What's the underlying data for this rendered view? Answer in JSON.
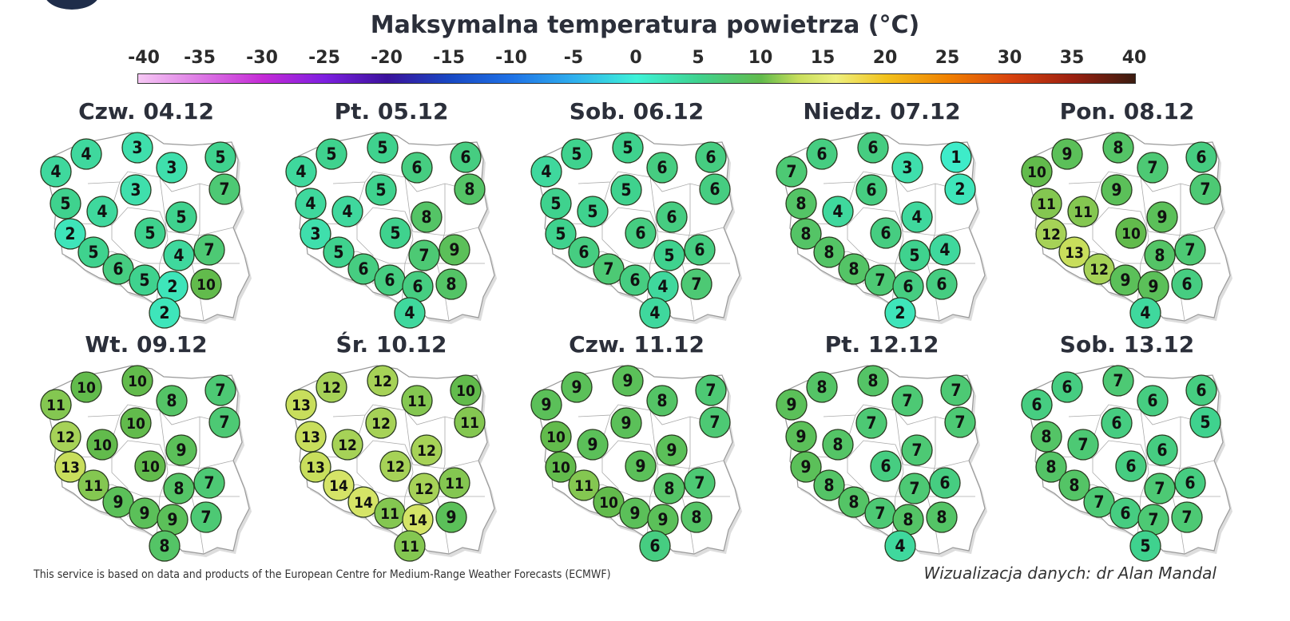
{
  "title": "Maksymalna temperatura powietrza (°C)",
  "colorbar": {
    "ticks": [
      "-40",
      "-35",
      "-30",
      "-25",
      "-20",
      "-15",
      "-10",
      "-5",
      "0",
      "5",
      "10",
      "15",
      "20",
      "25",
      "30",
      "35",
      "40"
    ],
    "range": [
      -40,
      40
    ],
    "colors": [
      {
        "v": -40,
        "c": "#f6c8f4"
      },
      {
        "v": -30,
        "c": "#c42ad6"
      },
      {
        "v": -25,
        "c": "#7d1fe0"
      },
      {
        "v": -20,
        "c": "#3a129c"
      },
      {
        "v": -15,
        "c": "#1848c4"
      },
      {
        "v": -10,
        "c": "#1f72e6"
      },
      {
        "v": -5,
        "c": "#2fb0ee"
      },
      {
        "v": 0,
        "c": "#3ef2d8"
      },
      {
        "v": 5,
        "c": "#3fd28e"
      },
      {
        "v": 10,
        "c": "#62bb4c"
      },
      {
        "v": 13,
        "c": "#c8de5c"
      },
      {
        "v": 16,
        "c": "#eef07e"
      },
      {
        "v": 20,
        "c": "#f2c21c"
      },
      {
        "v": 25,
        "c": "#f08000"
      },
      {
        "v": 30,
        "c": "#d8420e"
      },
      {
        "v": 35,
        "c": "#9c2010"
      },
      {
        "v": 40,
        "c": "#3a1c10"
      }
    ]
  },
  "panels": [
    {
      "title": "Czw. 04.12",
      "values": [
        4,
        4,
        3,
        3,
        5,
        7,
        5,
        4,
        3,
        5,
        2,
        5,
        5,
        4,
        7,
        6,
        5,
        2,
        10,
        2
      ]
    },
    {
      "title": "Pt. 05.12",
      "values": [
        4,
        5,
        5,
        6,
        6,
        8,
        4,
        4,
        5,
        8,
        3,
        5,
        5,
        7,
        9,
        6,
        6,
        6,
        8,
        4
      ]
    },
    {
      "title": "Sob. 06.12",
      "values": [
        4,
        5,
        5,
        6,
        6,
        6,
        5,
        5,
        5,
        6,
        5,
        6,
        6,
        5,
        6,
        7,
        6,
        4,
        7,
        4
      ]
    },
    {
      "title": "Niedz. 07.12",
      "values": [
        7,
        6,
        6,
        3,
        1,
        2,
        8,
        4,
        6,
        4,
        8,
        6,
        8,
        5,
        4,
        8,
        7,
        6,
        6,
        2
      ]
    },
    {
      "title": "Pon. 08.12",
      "values": [
        10,
        9,
        8,
        7,
        6,
        7,
        11,
        11,
        9,
        9,
        12,
        10,
        13,
        8,
        7,
        12,
        9,
        9,
        6,
        4
      ]
    },
    {
      "title": "Wt. 09.12",
      "values": [
        11,
        10,
        10,
        8,
        7,
        7,
        12,
        10,
        10,
        9,
        13,
        10,
        11,
        8,
        7,
        9,
        9,
        9,
        7,
        8
      ]
    },
    {
      "title": "Śr. 10.12",
      "values": [
        13,
        12,
        12,
        11,
        10,
        11,
        13,
        12,
        12,
        12,
        13,
        12,
        14,
        12,
        11,
        14,
        11,
        14,
        9,
        11
      ]
    },
    {
      "title": "Czw. 11.12",
      "values": [
        9,
        9,
        9,
        8,
        7,
        7,
        10,
        9,
        9,
        9,
        10,
        9,
        11,
        8,
        7,
        10,
        9,
        9,
        8,
        6
      ]
    },
    {
      "title": "Pt. 12.12",
      "values": [
        9,
        8,
        8,
        7,
        7,
        7,
        9,
        8,
        7,
        7,
        9,
        6,
        8,
        7,
        6,
        8,
        7,
        8,
        8,
        4
      ]
    },
    {
      "title": "Sob. 13.12",
      "values": [
        6,
        6,
        7,
        6,
        6,
        5,
        8,
        7,
        6,
        6,
        8,
        6,
        8,
        7,
        6,
        7,
        6,
        7,
        7,
        5
      ]
    }
  ],
  "footer": {
    "source": "This service is based on data and products of the European Centre for Medium-Range Weather Forecasts (ECMWF)",
    "credit": "Wizualizacja danych: dr Alan Mandal"
  }
}
